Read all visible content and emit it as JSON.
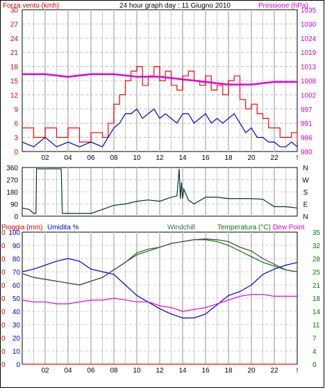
{
  "header": {
    "left_title": "Forza vento (kmh)",
    "center_title": "24 hour graph day : 11 Giugno 2010",
    "right_title": "Pressione (hPa)"
  },
  "colors": {
    "wind": "#ff0000",
    "gust": "#ff0000",
    "wind_avg": "#0000cc",
    "pressure": "#e000e0",
    "direction": "#003333",
    "humidity": "#0000cc",
    "temperature": "#007700",
    "windchill": "#444444",
    "dew_point": "#e000e0",
    "rain": "#ff0000",
    "grid_major": "#c8c8c8",
    "grid_minor": "#c8c8c8"
  },
  "chart_data": [
    {
      "type": "line",
      "id": "wind-pressure",
      "title": "24 hour graph day : 11 Giugno 2010",
      "left_axis_label": "Forza vento (kmh)",
      "right_axis_label": "Pressione (hPa)",
      "left_ticks": [
        "0",
        "3",
        "6",
        "9",
        "12",
        "15",
        "18",
        "21",
        "24",
        "27",
        "30"
      ],
      "right_ticks": [
        "980",
        "986",
        "991",
        "997",
        "1002",
        "1008",
        "1013",
        "1019",
        "1024",
        "1030",
        "1035"
      ],
      "left_range": [
        0,
        30
      ],
      "right_range": [
        980,
        1035
      ],
      "x_ticks": [
        "02",
        "04",
        "06",
        "08",
        "10",
        "12",
        "14",
        "16",
        "18",
        "20",
        "22",
        "!"
      ],
      "x_range": [
        0,
        24
      ],
      "series": [
        {
          "kind": "gust",
          "x": [
            0,
            1,
            2,
            3,
            4,
            5,
            6,
            7,
            7.5,
            8,
            8.5,
            9,
            9.5,
            10,
            10.5,
            11,
            11.5,
            12,
            12.5,
            13,
            13.5,
            14,
            14.5,
            15,
            15.5,
            16,
            16.5,
            17,
            17.5,
            18,
            18.5,
            19,
            19.5,
            20,
            20.5,
            21,
            21.5,
            22,
            22.5,
            23,
            23.5,
            24
          ],
          "values": [
            5,
            3,
            5,
            3,
            5,
            2,
            4,
            3,
            6,
            10,
            12,
            15,
            17,
            18,
            14,
            16,
            18,
            15,
            17,
            14,
            13,
            16,
            17,
            15,
            14,
            16,
            13,
            14,
            12,
            15,
            16,
            11,
            9,
            10,
            8,
            7,
            5,
            5,
            3,
            3,
            4,
            2
          ]
        },
        {
          "kind": "average",
          "x": [
            0,
            1,
            2,
            3,
            4,
            5,
            6,
            7,
            7.5,
            8,
            8.5,
            9,
            9.5,
            10,
            10.5,
            11,
            11.5,
            12,
            12.5,
            13,
            13.5,
            14,
            14.5,
            15,
            15.5,
            16,
            16.5,
            17,
            17.5,
            18,
            18.5,
            19,
            19.5,
            20,
            20.5,
            21,
            21.5,
            22,
            22.5,
            23,
            23.5,
            24
          ],
          "values": [
            2,
            1,
            3,
            1,
            2,
            1,
            2,
            1,
            3,
            5,
            6,
            8,
            8,
            9,
            7,
            8,
            9,
            7,
            8,
            7,
            6,
            8,
            8,
            6,
            7,
            8,
            6,
            7,
            6,
            7,
            8,
            6,
            4,
            5,
            3,
            3,
            2,
            2,
            1,
            1,
            2,
            1
          ]
        },
        {
          "kind": "pressure",
          "x": [
            0,
            2,
            4,
            6,
            8,
            10,
            12,
            14,
            16,
            18,
            20,
            22,
            24
          ],
          "values": [
            1010,
            1010,
            1009,
            1010,
            1010,
            1009,
            1009,
            1008,
            1007,
            1006,
            1006,
            1007,
            1007
          ]
        }
      ]
    },
    {
      "type": "line",
      "id": "wind-direction",
      "left_ticks": [
        "0",
        "90",
        "180",
        "270",
        "360"
      ],
      "left_range": [
        0,
        360
      ],
      "right_ticks": [
        "N",
        "E",
        "S",
        "W",
        "N"
      ],
      "x_range": [
        0,
        24
      ],
      "x": [
        0,
        0.6,
        1.0,
        1.2,
        1.25,
        1.8,
        2.2,
        3.0,
        3.4,
        3.5,
        4,
        5,
        6,
        7,
        8,
        9,
        10,
        11,
        12,
        13,
        13.5,
        13.7,
        13.8,
        13.9,
        14.0,
        14.1,
        14.5,
        15,
        16,
        17,
        18,
        19,
        20,
        21,
        22,
        23,
        24
      ],
      "values": [
        60,
        50,
        20,
        20,
        350,
        350,
        350,
        350,
        350,
        20,
        20,
        20,
        20,
        50,
        80,
        90,
        110,
        120,
        110,
        140,
        150,
        350,
        130,
        250,
        130,
        200,
        120,
        90,
        140,
        140,
        130,
        130,
        130,
        125,
        70,
        70,
        60
      ]
    },
    {
      "type": "line",
      "id": "temp-humidity",
      "left_axis_label": "Pioggia (mm)",
      "left_axis_label_2": "Umidita %",
      "legend": [
        "Windchill",
        "Temperatura (°C)",
        "Dew Point"
      ],
      "rain_ticks": [
        "0",
        "0",
        "0",
        "0",
        "0",
        "0",
        "0",
        "0",
        "0",
        "0",
        "0"
      ],
      "humidity_ticks": [
        "0",
        "10",
        "20",
        "30",
        "40",
        "50",
        "60",
        "70",
        "80",
        "90",
        "100"
      ],
      "humidity_range": [
        0,
        100
      ],
      "right_ticks": [
        "0",
        "4",
        "7",
        "11",
        "14",
        "18",
        "21",
        "25",
        "28",
        "32",
        "35"
      ],
      "right_range": [
        0,
        35
      ],
      "x_ticks": [
        "02",
        "04",
        "06",
        "08",
        "10",
        "12",
        "14",
        "16",
        "18",
        "20",
        "22",
        "!"
      ],
      "x_range": [
        0,
        24
      ],
      "series": [
        {
          "name": "Umidita %",
          "kind": "humidity",
          "x": [
            0,
            1,
            2,
            3,
            4,
            5,
            6,
            7,
            8,
            9,
            10,
            11,
            12,
            13,
            14,
            15,
            16,
            17,
            18,
            19,
            20,
            21,
            22,
            23,
            24
          ],
          "values": [
            70,
            72,
            75,
            78,
            80,
            78,
            72,
            70,
            68,
            60,
            52,
            47,
            42,
            38,
            35,
            35,
            38,
            45,
            52,
            55,
            60,
            68,
            72,
            75,
            77
          ]
        },
        {
          "name": "Temperatura (°C)",
          "kind": "temperature",
          "x": [
            0,
            1,
            2,
            3,
            4,
            5,
            6,
            7,
            8,
            9,
            10,
            11,
            12,
            13,
            14,
            15,
            16,
            17,
            18,
            19,
            20,
            21,
            22,
            23,
            24
          ],
          "values": [
            24,
            23,
            22.5,
            22,
            21.5,
            21,
            22,
            23,
            25,
            27,
            29,
            30,
            31,
            32,
            32.5,
            33,
            33,
            32.5,
            31.5,
            30,
            28.5,
            27,
            26,
            25,
            24.5
          ]
        },
        {
          "name": "Windchill",
          "kind": "windchill",
          "x": [
            0,
            1,
            2,
            3,
            4,
            5,
            6,
            7,
            8,
            9,
            10,
            11,
            12,
            13,
            14,
            15,
            16,
            17,
            18,
            19,
            20,
            21,
            22,
            23,
            24
          ],
          "values": [
            24,
            23,
            22.5,
            22,
            21.5,
            21,
            22,
            23,
            25,
            27,
            29.5,
            30.5,
            31,
            32,
            32.5,
            33,
            33.2,
            33,
            32.5,
            31,
            30,
            28,
            26.5,
            25,
            24.5
          ]
        },
        {
          "name": "Dew Point",
          "kind": "dew_point",
          "x": [
            0,
            1,
            2,
            3,
            4,
            5,
            6,
            7,
            8,
            9,
            10,
            11,
            12,
            13,
            14,
            15,
            16,
            17,
            18,
            19,
            20,
            21,
            22,
            23,
            24
          ],
          "values": [
            17,
            16.5,
            16.5,
            16,
            16,
            16.5,
            17,
            17,
            17.5,
            17,
            16.5,
            16.5,
            15.5,
            15,
            14,
            14.5,
            15,
            16,
            17,
            18,
            18.5,
            18.5,
            18,
            18,
            18
          ]
        },
        {
          "name": "Pioggia (mm)",
          "kind": "rain",
          "x": [
            0,
            24
          ],
          "values": [
            0,
            0
          ]
        }
      ]
    }
  ]
}
